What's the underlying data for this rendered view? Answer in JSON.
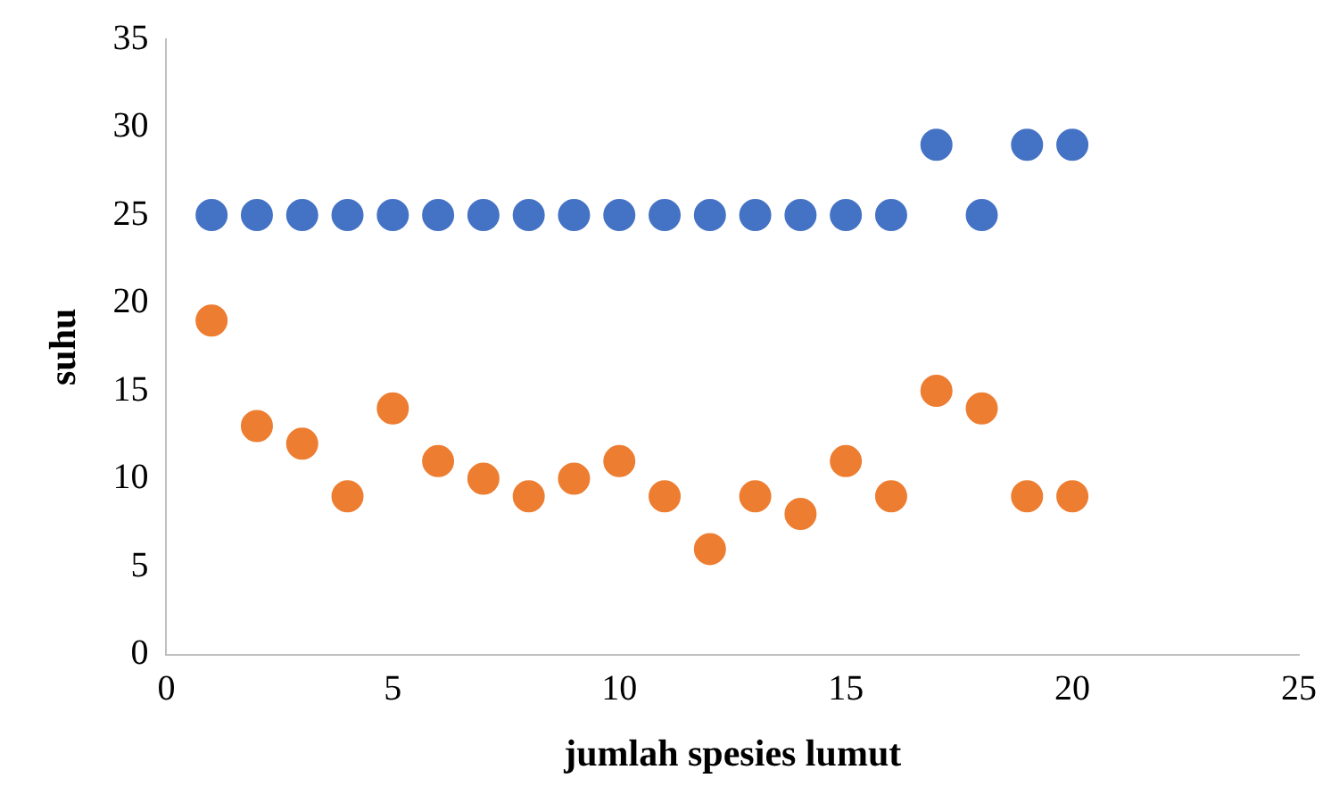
{
  "chart_data": {
    "type": "scatter",
    "xlabel": "jumlah spesies lumut",
    "ylabel": "suhu",
    "x": [
      1,
      2,
      3,
      4,
      5,
      6,
      7,
      8,
      9,
      10,
      11,
      12,
      13,
      14,
      15,
      16,
      17,
      18,
      19,
      20
    ],
    "series": [
      {
        "color": "#4472c4",
        "values": [
          25,
          25,
          25,
          25,
          25,
          25,
          25,
          25,
          25,
          25,
          25,
          25,
          25,
          25,
          25,
          25,
          29,
          25,
          29,
          29
        ]
      },
      {
        "color": "#ed7d31",
        "values": [
          19,
          13,
          12,
          9,
          14,
          11,
          10,
          9,
          10,
          11,
          9,
          6,
          9,
          8,
          11,
          9,
          15,
          14,
          9,
          9
        ]
      }
    ],
    "xlim": [
      0,
      25
    ],
    "xticks": [
      0,
      5,
      10,
      15,
      20,
      25
    ],
    "ylim": [
      0,
      35
    ],
    "yticks": [
      0,
      5,
      10,
      15,
      20,
      25,
      30,
      35
    ],
    "grid": false,
    "legend": false,
    "marker": "circle"
  }
}
